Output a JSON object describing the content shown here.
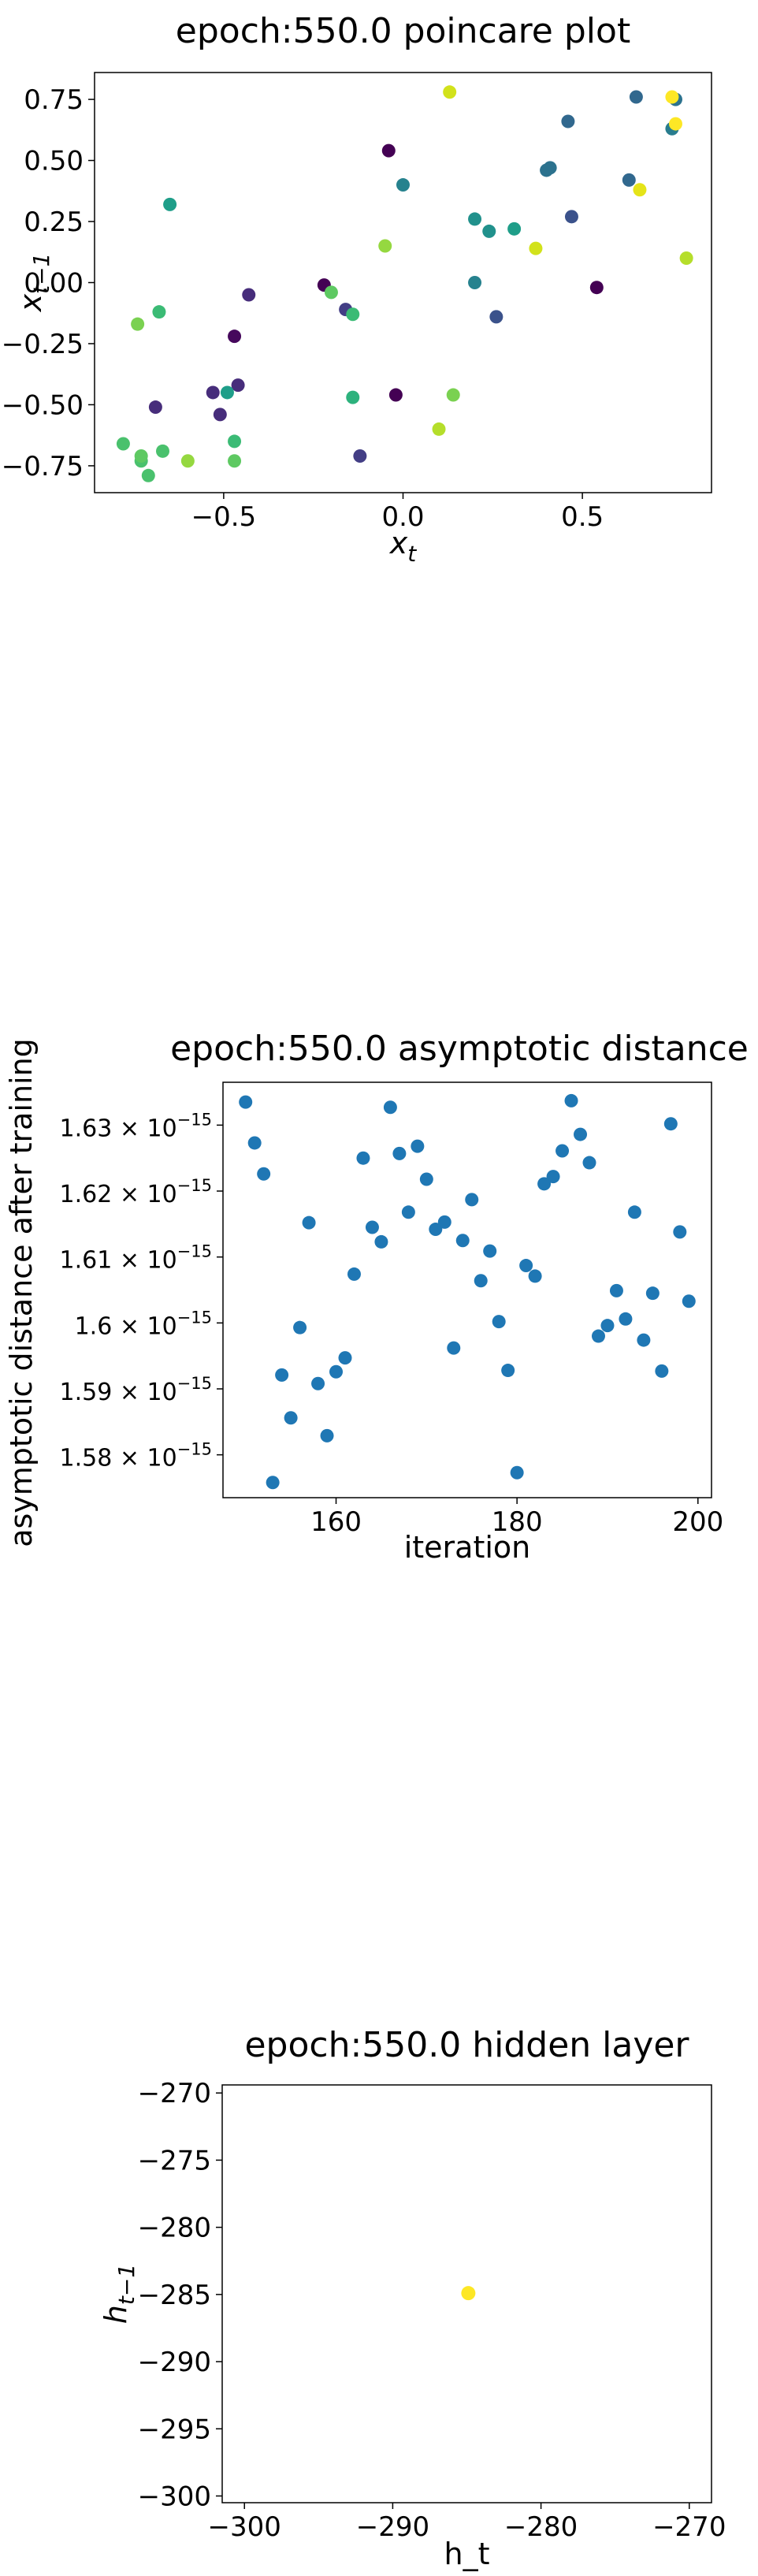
{
  "chart_data": [
    {
      "type": "scatter",
      "title": "epoch:550.0 poincare plot",
      "xlabel": "x_t",
      "ylabel": "x_{t-1}",
      "xlim": [
        -0.86,
        0.86
      ],
      "ylim": [
        -0.86,
        0.86
      ],
      "xticks": [
        {
          "v": -0.5,
          "label": "−0.5"
        },
        {
          "v": 0.0,
          "label": "0.0"
        },
        {
          "v": 0.5,
          "label": "0.5"
        }
      ],
      "yticks": [
        {
          "v": 0.75,
          "label": "0.75"
        },
        {
          "v": 0.5,
          "label": "0.50"
        },
        {
          "v": 0.25,
          "label": "0.25"
        },
        {
          "v": 0.0,
          "label": "0.00"
        },
        {
          "v": -0.25,
          "label": "−0.25"
        },
        {
          "v": -0.5,
          "label": "−0.50"
        },
        {
          "v": -0.75,
          "label": "−0.75"
        }
      ],
      "points": [
        {
          "x": -0.22,
          "y": -0.01,
          "color": "#440154"
        },
        {
          "x": -0.04,
          "y": 0.54,
          "color": "#440154"
        },
        {
          "x": -0.02,
          "y": -0.46,
          "color": "#440154"
        },
        {
          "x": 0.54,
          "y": -0.02,
          "color": "#440154"
        },
        {
          "x": -0.47,
          "y": -0.22,
          "color": "#46085c"
        },
        {
          "x": -0.69,
          "y": -0.51,
          "color": "#472d7b"
        },
        {
          "x": -0.53,
          "y": -0.45,
          "color": "#472d7b"
        },
        {
          "x": -0.51,
          "y": -0.54,
          "color": "#472d7b"
        },
        {
          "x": -0.46,
          "y": -0.42,
          "color": "#472d7b"
        },
        {
          "x": -0.43,
          "y": -0.05,
          "color": "#472d7b"
        },
        {
          "x": -0.16,
          "y": -0.11,
          "color": "#433e85"
        },
        {
          "x": -0.12,
          "y": -0.71,
          "color": "#433e85"
        },
        {
          "x": 0.26,
          "y": -0.14,
          "color": "#3b528b"
        },
        {
          "x": 0.47,
          "y": 0.27,
          "color": "#3b528b"
        },
        {
          "x": 0.46,
          "y": 0.66,
          "color": "#31688e"
        },
        {
          "x": 0.4,
          "y": 0.46,
          "color": "#2c728e"
        },
        {
          "x": 0.41,
          "y": 0.47,
          "color": "#2c728e"
        },
        {
          "x": 0.63,
          "y": 0.42,
          "color": "#31688e"
        },
        {
          "x": 0.65,
          "y": 0.76,
          "color": "#31688e"
        },
        {
          "x": 0.76,
          "y": 0.75,
          "color": "#2c728e"
        },
        {
          "x": 0.75,
          "y": 0.63,
          "color": "#287c8e"
        },
        {
          "x": 0.0,
          "y": 0.4,
          "color": "#26828e"
        },
        {
          "x": 0.2,
          "y": 0.0,
          "color": "#26828e"
        },
        {
          "x": 0.2,
          "y": 0.26,
          "color": "#21918c"
        },
        {
          "x": 0.24,
          "y": 0.21,
          "color": "#21918c"
        },
        {
          "x": 0.31,
          "y": 0.22,
          "color": "#1f9e89"
        },
        {
          "x": -0.65,
          "y": 0.32,
          "color": "#1f9e89"
        },
        {
          "x": -0.49,
          "y": -0.45,
          "color": "#1f9e89"
        },
        {
          "x": -0.14,
          "y": -0.47,
          "color": "#2db27d"
        },
        {
          "x": -0.47,
          "y": -0.65,
          "color": "#3bbb75"
        },
        {
          "x": -0.68,
          "y": -0.12,
          "color": "#3bbb75"
        },
        {
          "x": -0.14,
          "y": -0.13,
          "color": "#3bbb75"
        },
        {
          "x": -0.78,
          "y": -0.66,
          "color": "#4ac16d"
        },
        {
          "x": -0.73,
          "y": -0.73,
          "color": "#4ac16d"
        },
        {
          "x": -0.71,
          "y": -0.79,
          "color": "#4ac16d"
        },
        {
          "x": -0.67,
          "y": -0.69,
          "color": "#4ac16d"
        },
        {
          "x": -0.73,
          "y": -0.71,
          "color": "#5ec962"
        },
        {
          "x": -0.47,
          "y": -0.73,
          "color": "#5ec962"
        },
        {
          "x": -0.2,
          "y": -0.04,
          "color": "#5ec962"
        },
        {
          "x": 0.14,
          "y": -0.46,
          "color": "#7ad151"
        },
        {
          "x": -0.74,
          "y": -0.17,
          "color": "#7ad151"
        },
        {
          "x": -0.6,
          "y": -0.73,
          "color": "#95d840"
        },
        {
          "x": -0.05,
          "y": 0.15,
          "color": "#95d840"
        },
        {
          "x": 0.1,
          "y": -0.6,
          "color": "#b5de2b"
        },
        {
          "x": 0.79,
          "y": 0.1,
          "color": "#b5de2b"
        },
        {
          "x": 0.13,
          "y": 0.78,
          "color": "#d2e21b"
        },
        {
          "x": 0.37,
          "y": 0.14,
          "color": "#d2e21b"
        },
        {
          "x": 0.66,
          "y": 0.38,
          "color": "#e5e419"
        },
        {
          "x": 0.75,
          "y": 0.76,
          "color": "#fde725"
        },
        {
          "x": 0.76,
          "y": 0.65,
          "color": "#fde725"
        }
      ]
    },
    {
      "type": "scatter",
      "title": "epoch:550.0 asymptotic distance",
      "xlabel": "iteration",
      "ylabel": "asymptotic distance after training",
      "xlim": [
        147.5,
        201.5
      ],
      "ylim": [
        1.5735,
        1.6365
      ],
      "scale_note": "1e-15",
      "color": "#1f77b4",
      "xticks": [
        {
          "v": 160,
          "label": "160"
        },
        {
          "v": 180,
          "label": "180"
        },
        {
          "v": 200,
          "label": "200"
        }
      ],
      "yticks": [
        {
          "v": 1.63,
          "label": "1.63 × 10",
          "exp": "−15"
        },
        {
          "v": 1.62,
          "label": "1.62 × 10",
          "exp": "−15"
        },
        {
          "v": 1.61,
          "label": "1.61 × 10",
          "exp": "−15"
        },
        {
          "v": 1.6,
          "label": "1.6 × 10",
          "exp": "−15"
        },
        {
          "v": 1.59,
          "label": "1.59 × 10",
          "exp": "−15"
        },
        {
          "v": 1.58,
          "label": "1.58 × 10",
          "exp": "−15"
        }
      ],
      "points": [
        {
          "x": 150,
          "y": 1.6335
        },
        {
          "x": 151,
          "y": 1.6273
        },
        {
          "x": 152,
          "y": 1.6226
        },
        {
          "x": 153,
          "y": 1.5758
        },
        {
          "x": 154,
          "y": 1.5921
        },
        {
          "x": 155,
          "y": 1.5856
        },
        {
          "x": 156,
          "y": 1.5993
        },
        {
          "x": 157,
          "y": 1.6152
        },
        {
          "x": 158,
          "y": 1.5908
        },
        {
          "x": 159,
          "y": 1.5829
        },
        {
          "x": 160,
          "y": 1.5926
        },
        {
          "x": 161,
          "y": 1.5947
        },
        {
          "x": 162,
          "y": 1.6074
        },
        {
          "x": 163,
          "y": 1.625
        },
        {
          "x": 164,
          "y": 1.6145
        },
        {
          "x": 165,
          "y": 1.6123
        },
        {
          "x": 166,
          "y": 1.6327
        },
        {
          "x": 167,
          "y": 1.6257
        },
        {
          "x": 168,
          "y": 1.6168
        },
        {
          "x": 169,
          "y": 1.6268
        },
        {
          "x": 170,
          "y": 1.6218
        },
        {
          "x": 171,
          "y": 1.6142
        },
        {
          "x": 172,
          "y": 1.6153
        },
        {
          "x": 173,
          "y": 1.5962
        },
        {
          "x": 174,
          "y": 1.6125
        },
        {
          "x": 175,
          "y": 1.6187
        },
        {
          "x": 176,
          "y": 1.6064
        },
        {
          "x": 177,
          "y": 1.6109
        },
        {
          "x": 178,
          "y": 1.6002
        },
        {
          "x": 179,
          "y": 1.5928
        },
        {
          "x": 180,
          "y": 1.5773
        },
        {
          "x": 181,
          "y": 1.6087
        },
        {
          "x": 182,
          "y": 1.6071
        },
        {
          "x": 183,
          "y": 1.6211
        },
        {
          "x": 184,
          "y": 1.6222
        },
        {
          "x": 185,
          "y": 1.6261
        },
        {
          "x": 186,
          "y": 1.6337
        },
        {
          "x": 187,
          "y": 1.6286
        },
        {
          "x": 188,
          "y": 1.6243
        },
        {
          "x": 189,
          "y": 1.598
        },
        {
          "x": 190,
          "y": 1.5996
        },
        {
          "x": 191,
          "y": 1.6049
        },
        {
          "x": 192,
          "y": 1.6006
        },
        {
          "x": 193,
          "y": 1.6168
        },
        {
          "x": 194,
          "y": 1.5974
        },
        {
          "x": 195,
          "y": 1.6045
        },
        {
          "x": 196,
          "y": 1.5927
        },
        {
          "x": 197,
          "y": 1.6302
        },
        {
          "x": 198,
          "y": 1.6138
        },
        {
          "x": 199,
          "y": 1.6033
        }
      ]
    },
    {
      "type": "scatter",
      "title": "epoch:550.0 hidden layer",
      "xlabel": "h_t",
      "ylabel": "h_{t-1}",
      "xlim": [
        -301.5,
        -268.5
      ],
      "ylim": [
        -300.5,
        -269.4
      ],
      "xticks": [
        {
          "v": -300,
          "label": "−300"
        },
        {
          "v": -290,
          "label": "−290"
        },
        {
          "v": -280,
          "label": "−280"
        },
        {
          "v": -270,
          "label": "−270"
        }
      ],
      "yticks": [
        {
          "v": -270,
          "label": "−270"
        },
        {
          "v": -275,
          "label": "−275"
        },
        {
          "v": -280,
          "label": "−280"
        },
        {
          "v": -285,
          "label": "−285"
        },
        {
          "v": -290,
          "label": "−290"
        },
        {
          "v": -295,
          "label": "−295"
        },
        {
          "v": -300,
          "label": "−300"
        }
      ],
      "points": [
        {
          "x": -284.9,
          "y": -284.9,
          "color": "#fde725"
        }
      ]
    }
  ]
}
